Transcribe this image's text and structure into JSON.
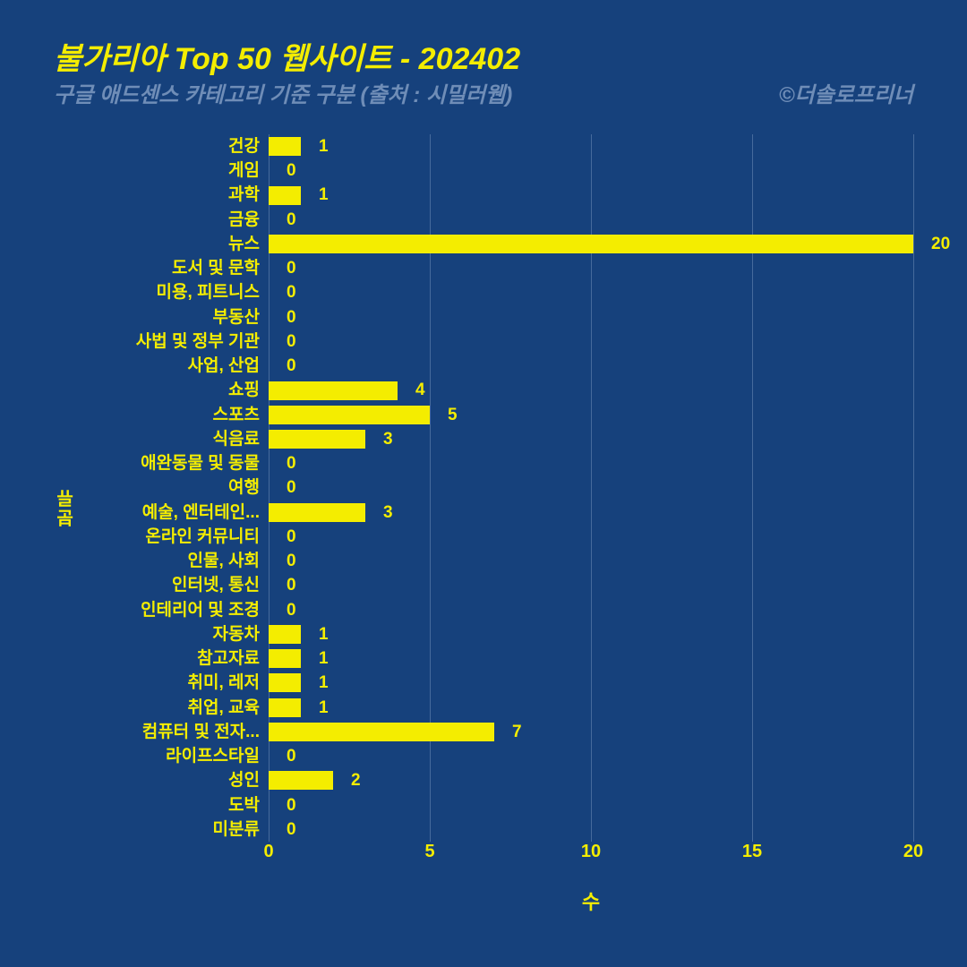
{
  "title": "불가리아 Top 50 웹사이트 - 202402",
  "subtitle": "구글 애드센스 카테고리 기준 구분 (출처 : 시밀러웹)",
  "credit": "©더솔로프리너",
  "chart": {
    "type": "horizontal-bar",
    "xlabel": "수",
    "ylabel": "분류",
    "xlim": [
      0,
      20
    ],
    "xtick_step": 5,
    "xticks": [
      0,
      5,
      10,
      15,
      20
    ],
    "bar_color": "#f4ed00",
    "text_color": "#f4ed00",
    "grid_color": "#6f8db7",
    "background_color": "#16417c",
    "label_fontsize": 19,
    "tick_fontsize": 20,
    "title_fontsize": 34,
    "subtitle_fontsize": 24,
    "bar_height_ratio": 0.77,
    "categories": [
      {
        "label": "건강",
        "value": 1
      },
      {
        "label": "게임",
        "value": 0
      },
      {
        "label": "과학",
        "value": 1
      },
      {
        "label": "금융",
        "value": 0
      },
      {
        "label": "뉴스",
        "value": 20
      },
      {
        "label": "도서 및 문학",
        "value": 0
      },
      {
        "label": "미용, 피트니스",
        "value": 0
      },
      {
        "label": "부동산",
        "value": 0
      },
      {
        "label": "사법 및 정부 기관",
        "value": 0
      },
      {
        "label": "사업, 산업",
        "value": 0
      },
      {
        "label": "쇼핑",
        "value": 4
      },
      {
        "label": "스포츠",
        "value": 5
      },
      {
        "label": "식음료",
        "value": 3
      },
      {
        "label": "애완동물 및 동물",
        "value": 0
      },
      {
        "label": "여행",
        "value": 0
      },
      {
        "label": "예술, 엔터테인...",
        "value": 3
      },
      {
        "label": "온라인 커뮤니티",
        "value": 0
      },
      {
        "label": "인물, 사회",
        "value": 0
      },
      {
        "label": "인터넷, 통신",
        "value": 0
      },
      {
        "label": "인테리어 및 조경",
        "value": 0
      },
      {
        "label": "자동차",
        "value": 1
      },
      {
        "label": "참고자료",
        "value": 1
      },
      {
        "label": "취미, 레저",
        "value": 1
      },
      {
        "label": "취업, 교육",
        "value": 1
      },
      {
        "label": "컴퓨터 및 전자...",
        "value": 7
      },
      {
        "label": "라이프스타일",
        "value": 0
      },
      {
        "label": "성인",
        "value": 2
      },
      {
        "label": "도박",
        "value": 0
      },
      {
        "label": "미분류",
        "value": 0
      }
    ]
  }
}
